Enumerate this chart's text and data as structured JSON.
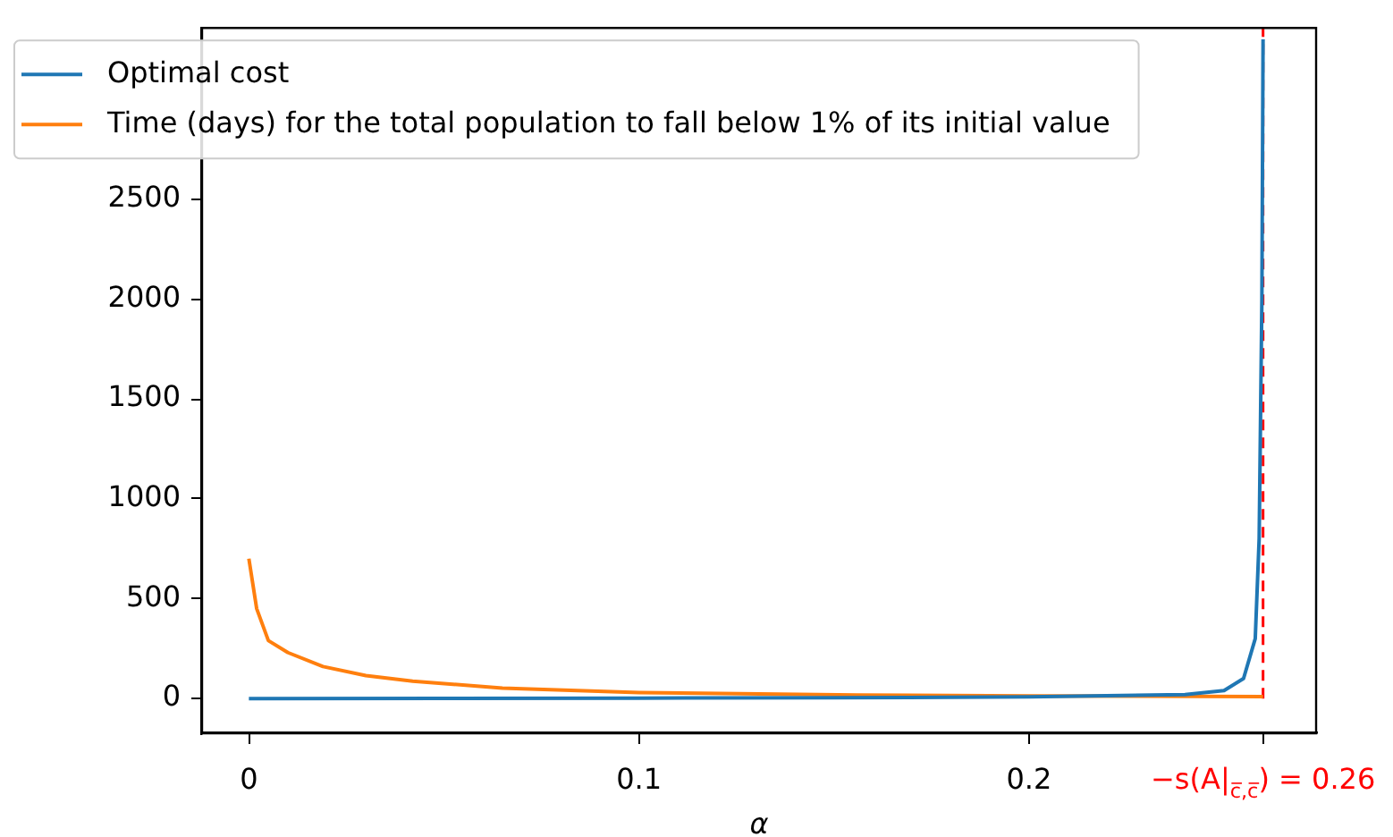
{
  "chart_data": {
    "type": "line",
    "xlabel": "α",
    "xlim": [
      -0.012,
      0.2736
    ],
    "ylim": [
      -174,
      3357
    ],
    "xticks": [
      0,
      0.1,
      0.2,
      {
        "value": 0.26,
        "label": "−s(A|$_{c̅,c̅}$) = 0.26"
      }
    ],
    "yticks": [
      0,
      500,
      1000,
      1500,
      2000,
      2500
    ],
    "legend": "top left",
    "ref_lines": [
      {
        "axis": "x",
        "value": 0.26,
        "color": "#ff0000",
        "line_style": "dashed"
      }
    ],
    "series": [
      {
        "name": "Optimal cost",
        "color": "#1f77b4",
        "x": [
          0,
          0.05,
          0.1,
          0.15,
          0.2,
          0.24,
          0.25,
          0.255,
          0.258,
          0.259,
          0.2597,
          0.26
        ],
        "values": [
          0,
          1,
          2,
          4,
          8,
          20,
          40,
          100,
          300,
          800,
          2000,
          3300
        ]
      },
      {
        "name": "Time (days) for the total population to fall below 1% of its initial value",
        "color": "#ff7f0e",
        "x": [
          0,
          0.002,
          0.005,
          0.01,
          0.019,
          0.03,
          0.042,
          0.065,
          0.1,
          0.156,
          0.2,
          0.26
        ],
        "values": [
          700,
          450,
          290,
          230,
          160,
          115,
          87,
          52,
          30,
          17,
          13,
          10
        ]
      }
    ]
  }
}
